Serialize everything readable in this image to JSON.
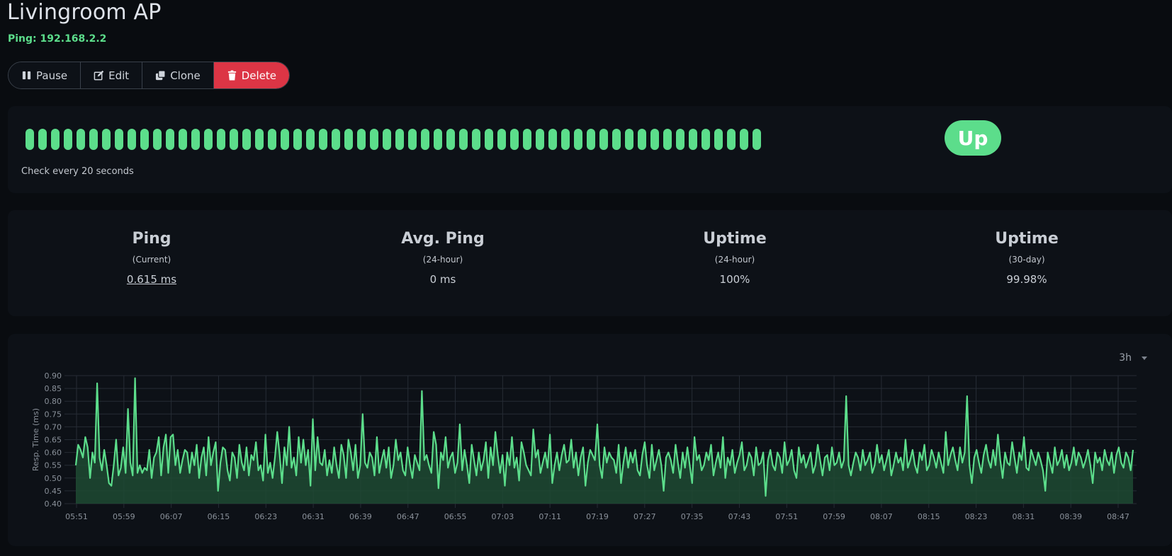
{
  "monitor": {
    "title": "Livingroom AP",
    "subtitle": "Ping: 192.168.2.2"
  },
  "toolbar": {
    "pause_label": "Pause",
    "edit_label": "Edit",
    "clone_label": "Clone",
    "delete_label": "Delete"
  },
  "heartbeat": {
    "beat_count": 58,
    "status": "up",
    "color": "#5cdd8b",
    "check_text": "Check every 20 seconds",
    "status_label": "Up"
  },
  "stats": [
    {
      "heading": "Ping",
      "sub": "(Current)",
      "value": "0.615 ms"
    },
    {
      "heading": "Avg. Ping",
      "sub": "(24-hour)",
      "value": "0 ms"
    },
    {
      "heading": "Uptime",
      "sub": "(24-hour)",
      "value": "100%"
    },
    {
      "heading": "Uptime",
      "sub": "(30-day)",
      "value": "99.98%"
    }
  ],
  "chart_controls": {
    "range": "3h"
  },
  "chart_data": {
    "type": "area",
    "ylabel": "Resp. Time (ms)",
    "ylim": [
      0.4,
      0.9
    ],
    "yticks": [
      "0.90",
      "0.85",
      "0.80",
      "0.75",
      "0.70",
      "0.65",
      "0.60",
      "0.55",
      "0.50",
      "0.45",
      "0.40"
    ],
    "xticks": [
      "05:51",
      "05:59",
      "06:07",
      "06:15",
      "06:23",
      "06:31",
      "06:39",
      "06:47",
      "06:55",
      "07:03",
      "07:11",
      "07:19",
      "07:27",
      "07:35",
      "07:43",
      "07:51",
      "07:59",
      "08:07",
      "08:15",
      "08:23",
      "08:31",
      "08:39",
      "08:47"
    ],
    "grid": true,
    "line_color": "#5cdd8b",
    "fill_color": "#1f4a33",
    "series": [
      {
        "values": [
          0.55,
          0.63,
          0.61,
          0.58,
          0.66,
          0.62,
          0.5,
          0.6,
          0.56,
          0.87,
          0.58,
          0.53,
          0.61,
          0.55,
          0.48,
          0.47,
          0.55,
          0.65,
          0.51,
          0.54,
          0.62,
          0.52,
          0.77,
          0.56,
          0.51,
          0.89,
          0.52,
          0.55,
          0.52,
          0.54,
          0.53,
          0.61,
          0.5,
          0.58,
          0.6,
          0.66,
          0.51,
          0.62,
          0.67,
          0.52,
          0.66,
          0.67,
          0.55,
          0.61,
          0.52,
          0.57,
          0.61,
          0.6,
          0.52,
          0.6,
          0.55,
          0.63,
          0.5,
          0.58,
          0.62,
          0.51,
          0.66,
          0.55,
          0.6,
          0.64,
          0.45,
          0.56,
          0.62,
          0.61,
          0.53,
          0.49,
          0.6,
          0.58,
          0.5,
          0.63,
          0.56,
          0.53,
          0.62,
          0.51,
          0.59,
          0.57,
          0.64,
          0.53,
          0.55,
          0.49,
          0.67,
          0.52,
          0.56,
          0.5,
          0.58,
          0.68,
          0.59,
          0.48,
          0.62,
          0.55,
          0.7,
          0.54,
          0.58,
          0.51,
          0.66,
          0.56,
          0.65,
          0.55,
          0.61,
          0.47,
          0.73,
          0.53,
          0.66,
          0.56,
          0.55,
          0.61,
          0.51,
          0.57,
          0.52,
          0.62,
          0.55,
          0.5,
          0.63,
          0.59,
          0.5,
          0.65,
          0.6,
          0.53,
          0.63,
          0.5,
          0.55,
          0.75,
          0.56,
          0.54,
          0.6,
          0.58,
          0.51,
          0.66,
          0.52,
          0.57,
          0.61,
          0.54,
          0.62,
          0.5,
          0.55,
          0.65,
          0.57,
          0.6,
          0.53,
          0.51,
          0.62,
          0.55,
          0.5,
          0.59,
          0.56,
          0.53,
          0.84,
          0.57,
          0.59,
          0.55,
          0.52,
          0.68,
          0.63,
          0.46,
          0.6,
          0.57,
          0.66,
          0.54,
          0.58,
          0.6,
          0.52,
          0.56,
          0.71,
          0.53,
          0.61,
          0.55,
          0.48,
          0.63,
          0.57,
          0.51,
          0.6,
          0.53,
          0.57,
          0.64,
          0.5,
          0.62,
          0.55,
          0.68,
          0.59,
          0.52,
          0.59,
          0.47,
          0.6,
          0.55,
          0.66,
          0.54,
          0.58,
          0.49,
          0.64,
          0.6,
          0.55,
          0.53,
          0.51,
          0.69,
          0.58,
          0.61,
          0.52,
          0.56,
          0.6,
          0.54,
          0.67,
          0.48,
          0.55,
          0.6,
          0.53,
          0.59,
          0.63,
          0.56,
          0.57,
          0.65,
          0.54,
          0.6,
          0.51,
          0.58,
          0.62,
          0.47,
          0.56,
          0.61,
          0.59,
          0.57,
          0.71,
          0.55,
          0.5,
          0.62,
          0.56,
          0.6,
          0.58,
          0.57,
          0.52,
          0.63,
          0.48,
          0.56,
          0.62,
          0.54,
          0.6,
          0.56,
          0.61,
          0.53,
          0.51,
          0.59,
          0.64,
          0.55,
          0.5,
          0.63,
          0.53,
          0.57,
          0.61,
          0.55,
          0.45,
          0.58,
          0.6,
          0.57,
          0.52,
          0.63,
          0.56,
          0.5,
          0.6,
          0.54,
          0.62,
          0.55,
          0.48,
          0.66,
          0.57,
          0.59,
          0.53,
          0.55,
          0.6,
          0.57,
          0.63,
          0.51,
          0.56,
          0.6,
          0.54,
          0.66,
          0.5,
          0.58,
          0.55,
          0.61,
          0.52,
          0.56,
          0.59,
          0.64,
          0.53,
          0.55,
          0.6,
          0.58,
          0.51,
          0.62,
          0.55,
          0.56,
          0.6,
          0.43,
          0.57,
          0.61,
          0.55,
          0.53,
          0.6,
          0.58,
          0.52,
          0.64,
          0.55,
          0.57,
          0.61,
          0.53,
          0.5,
          0.62,
          0.56,
          0.59,
          0.54,
          0.57,
          0.6,
          0.52,
          0.55,
          0.63,
          0.57,
          0.51,
          0.58,
          0.59,
          0.53,
          0.62,
          0.55,
          0.56,
          0.6,
          0.54,
          0.57,
          0.82,
          0.55,
          0.51,
          0.56,
          0.6,
          0.58,
          0.53,
          0.61,
          0.55,
          0.57,
          0.6,
          0.52,
          0.55,
          0.63,
          0.56,
          0.59,
          0.53,
          0.57,
          0.61,
          0.51,
          0.55,
          0.6,
          0.56,
          0.58,
          0.53,
          0.65,
          0.54,
          0.57,
          0.61,
          0.55,
          0.52,
          0.6,
          0.57,
          0.63,
          0.53,
          0.55,
          0.61,
          0.58,
          0.54,
          0.6,
          0.56,
          0.52,
          0.68,
          0.55,
          0.59,
          0.62,
          0.57,
          0.53,
          0.62,
          0.56,
          0.6,
          0.82,
          0.55,
          0.48,
          0.58,
          0.61,
          0.56,
          0.52,
          0.59,
          0.63,
          0.57,
          0.54,
          0.61,
          0.55,
          0.67,
          0.57,
          0.5,
          0.6,
          0.56,
          0.55,
          0.64,
          0.58,
          0.52,
          0.6,
          0.57,
          0.66,
          0.54,
          0.53,
          0.61,
          0.58,
          0.55,
          0.6,
          0.57,
          0.53,
          0.45,
          0.6,
          0.56,
          0.52,
          0.62,
          0.55,
          0.57,
          0.61,
          0.54,
          0.59,
          0.53,
          0.56,
          0.62,
          0.55,
          0.6,
          0.58,
          0.54,
          0.57,
          0.61,
          0.55,
          0.48,
          0.6,
          0.56,
          0.58,
          0.53,
          0.61,
          0.57,
          0.55,
          0.6,
          0.52,
          0.59,
          0.62,
          0.56,
          0.54,
          0.6,
          0.58,
          0.53,
          0.61
        ]
      }
    ]
  }
}
